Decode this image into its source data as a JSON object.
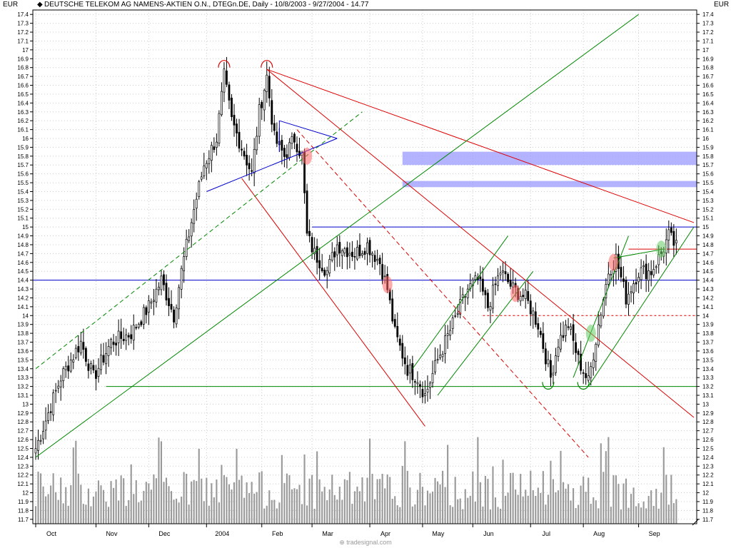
{
  "header": {
    "currency_left": "EUR",
    "currency_right": "EUR",
    "title": "DEUTSCHE TELEKOM AG NAMENS-AKTIEN O.N., DTEGn.DE, Daily - 10/8/2003 - 9/27/2004 - 14.77"
  },
  "footer": {
    "watermark": "tradesignal.com"
  },
  "colors": {
    "candle": "#000000",
    "volume": "#999999",
    "blue_line": "#0000cc",
    "red_line": "#dd0000",
    "green_line": "#008800",
    "zone": "#9999ff",
    "grid": "#cccccc"
  },
  "chart_data": {
    "type": "candlestick",
    "title": "DEUTSCHE TELEKOM AG NAMENS-AKTIEN O.N., DTEGn.DE, Daily - 10/8/2003 - 9/27/2004 - 14.77",
    "ylim": [
      11.65,
      17.45
    ],
    "y_ticks": [
      "11.7",
      "11.8",
      "11.9",
      "12",
      "12.1",
      "12.2",
      "12.3",
      "12.4",
      "12.5",
      "12.6",
      "12.7",
      "12.8",
      "12.9",
      "13",
      "13.1",
      "13.2",
      "13.3",
      "13.4",
      "13.5",
      "13.6",
      "13.7",
      "13.8",
      "13.9",
      "14",
      "14.1",
      "14.2",
      "14.3",
      "14.4",
      "14.5",
      "14.6",
      "14.7",
      "14.8",
      "14.9",
      "15",
      "15.1",
      "15.2",
      "15.3",
      "15.4",
      "15.5",
      "15.6",
      "15.7",
      "15.8",
      "15.9",
      "16",
      "16.1",
      "16.2",
      "16.3",
      "16.4",
      "16.5",
      "16.6",
      "16.7",
      "16.8",
      "16.9",
      "17",
      "17.1",
      "17.2",
      "17.3",
      "17.4"
    ],
    "month_labels": [
      {
        "label": "Oct",
        "day": 0
      },
      {
        "label": "Nov",
        "day": 24
      },
      {
        "label": "Dec",
        "day": 45
      },
      {
        "label": "2004",
        "day": 68
      },
      {
        "label": "Feb",
        "day": 90
      },
      {
        "label": "Mar",
        "day": 110
      },
      {
        "label": "Apr",
        "day": 133
      },
      {
        "label": "May",
        "day": 154
      },
      {
        "label": "Jun",
        "day": 174
      },
      {
        "label": "Jul",
        "day": 197
      },
      {
        "label": "Aug",
        "day": 218
      },
      {
        "label": "Sep",
        "day": 240
      }
    ],
    "last": 14.77,
    "waypoints": [
      {
        "day": 0,
        "price": 12.5
      },
      {
        "day": 10,
        "price": 13.3
      },
      {
        "day": 18,
        "price": 13.7
      },
      {
        "day": 23,
        "price": 13.3
      },
      {
        "day": 30,
        "price": 13.7
      },
      {
        "day": 38,
        "price": 13.8
      },
      {
        "day": 45,
        "price": 14.1
      },
      {
        "day": 50,
        "price": 14.4
      },
      {
        "day": 55,
        "price": 14.0
      },
      {
        "day": 58,
        "price": 14.5
      },
      {
        "day": 63,
        "price": 15.2
      },
      {
        "day": 67,
        "price": 15.7
      },
      {
        "day": 72,
        "price": 16.0
      },
      {
        "day": 75,
        "price": 16.7
      },
      {
        "day": 78,
        "price": 16.2
      },
      {
        "day": 82,
        "price": 15.9
      },
      {
        "day": 86,
        "price": 15.6
      },
      {
        "day": 89,
        "price": 16.3
      },
      {
        "day": 92,
        "price": 16.7
      },
      {
        "day": 95,
        "price": 16.0
      },
      {
        "day": 99,
        "price": 15.8
      },
      {
        "day": 103,
        "price": 16.0
      },
      {
        "day": 106,
        "price": 15.8
      },
      {
        "day": 108,
        "price": 14.9
      },
      {
        "day": 111,
        "price": 14.7
      },
      {
        "day": 116,
        "price": 14.5
      },
      {
        "day": 120,
        "price": 14.8
      },
      {
        "day": 127,
        "price": 14.7
      },
      {
        "day": 132,
        "price": 14.8
      },
      {
        "day": 137,
        "price": 14.6
      },
      {
        "day": 140,
        "price": 14.3
      },
      {
        "day": 143,
        "price": 13.8
      },
      {
        "day": 148,
        "price": 13.4
      },
      {
        "day": 152,
        "price": 13.3
      },
      {
        "day": 155,
        "price": 13.1
      },
      {
        "day": 160,
        "price": 13.5
      },
      {
        "day": 166,
        "price": 13.9
      },
      {
        "day": 172,
        "price": 14.3
      },
      {
        "day": 176,
        "price": 14.4
      },
      {
        "day": 180,
        "price": 14.1
      },
      {
        "day": 185,
        "price": 14.5
      },
      {
        "day": 190,
        "price": 14.3
      },
      {
        "day": 195,
        "price": 14.2
      },
      {
        "day": 200,
        "price": 13.9
      },
      {
        "day": 205,
        "price": 13.3
      },
      {
        "day": 208,
        "price": 13.7
      },
      {
        "day": 212,
        "price": 13.9
      },
      {
        "day": 216,
        "price": 13.5
      },
      {
        "day": 220,
        "price": 13.25
      },
      {
        "day": 224,
        "price": 13.9
      },
      {
        "day": 228,
        "price": 14.5
      },
      {
        "day": 231,
        "price": 14.65
      },
      {
        "day": 235,
        "price": 14.2
      },
      {
        "day": 240,
        "price": 14.5
      },
      {
        "day": 245,
        "price": 14.5
      },
      {
        "day": 249,
        "price": 14.7
      },
      {
        "day": 252,
        "price": 14.9
      },
      {
        "day": 255,
        "price": 14.77
      }
    ],
    "h_levels": [
      {
        "price": 15.0,
        "color": "blue",
        "style": "solid"
      },
      {
        "price": 14.4,
        "color": "blue",
        "style": "solid"
      },
      {
        "price": 13.2,
        "color": "green",
        "style": "solid"
      },
      {
        "price": 14.75,
        "color": "red",
        "style": "solid"
      },
      {
        "price": 14.0,
        "color": "red",
        "style": "dashed"
      }
    ],
    "zones": [
      {
        "from": 15.7,
        "to": 15.85
      },
      {
        "from": 15.45,
        "to": 15.52
      }
    ],
    "trend_lines": [
      {
        "color": "red",
        "style": "solid",
        "from": [
          92,
          16.78
        ],
        "to": [
          262,
          15.05
        ]
      },
      {
        "color": "red",
        "style": "solid",
        "from": [
          92,
          16.78
        ],
        "to": [
          262,
          12.85
        ]
      },
      {
        "color": "red",
        "style": "dashed",
        "from": [
          104,
          16.1
        ],
        "to": [
          220,
          12.4
        ]
      },
      {
        "color": "red",
        "style": "solid",
        "from": [
          82,
          15.55
        ],
        "to": [
          155,
          12.75
        ]
      },
      {
        "color": "green",
        "style": "solid",
        "from": [
          0,
          12.4
        ],
        "to": [
          240,
          17.4
        ]
      },
      {
        "color": "green",
        "style": "dashed",
        "from": [
          0,
          13.4
        ],
        "to": [
          130,
          16.3
        ]
      },
      {
        "color": "green",
        "style": "solid",
        "from": [
          150,
          13.4
        ],
        "to": [
          188,
          14.9
        ]
      },
      {
        "color": "green",
        "style": "solid",
        "from": [
          160,
          13.1
        ],
        "to": [
          198,
          14.5
        ]
      },
      {
        "color": "green",
        "style": "solid",
        "from": [
          220,
          13.2
        ],
        "to": [
          262,
          15.0
        ]
      },
      {
        "color": "green",
        "style": "solid",
        "from": [
          214,
          13.3
        ],
        "to": [
          236,
          14.9
        ]
      },
      {
        "color": "green",
        "style": "solid",
        "from": [
          230,
          14.65
        ],
        "to": [
          250,
          14.75
        ]
      },
      {
        "color": "blue",
        "style": "solid",
        "from": [
          68,
          15.4
        ],
        "to": [
          120,
          16.0
        ]
      },
      {
        "color": "blue",
        "style": "solid",
        "from": [
          97,
          16.2
        ],
        "to": [
          120,
          16.0
        ]
      },
      {
        "color": "blue",
        "style": "solid",
        "from": [
          97,
          16.2
        ],
        "to": [
          97,
          15.85
        ]
      }
    ],
    "arcs": [
      {
        "day": 75,
        "price": 16.8,
        "color": "red",
        "shape": "top"
      },
      {
        "day": 92,
        "price": 16.8,
        "color": "red",
        "shape": "top"
      },
      {
        "day": 204,
        "price": 13.25,
        "color": "green",
        "shape": "bottom"
      },
      {
        "day": 218,
        "price": 13.25,
        "color": "green",
        "shape": "bottom"
      }
    ],
    "highlights": [
      {
        "day": 230,
        "price": 14.6,
        "color": "red"
      },
      {
        "day": 249,
        "price": 14.75,
        "color": "green"
      },
      {
        "day": 108,
        "price": 15.8,
        "color": "red"
      },
      {
        "day": 140,
        "price": 14.35,
        "color": "red"
      },
      {
        "day": 191,
        "price": 14.25,
        "color": "red"
      },
      {
        "day": 221,
        "price": 13.8,
        "color": "green"
      }
    ]
  }
}
